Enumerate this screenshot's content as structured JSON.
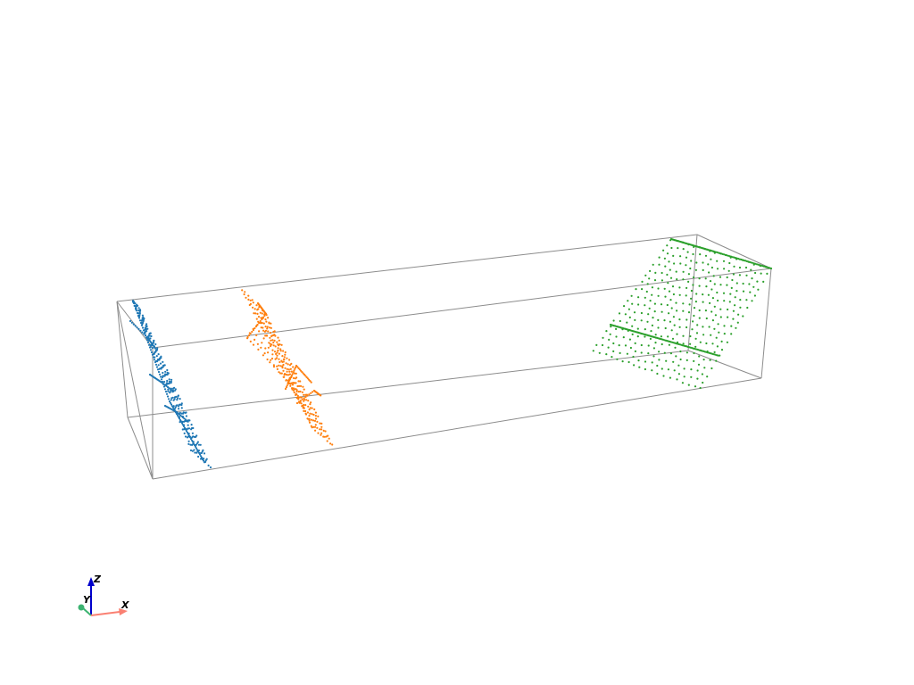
{
  "scene": {
    "background": "#ffffff",
    "bounding_box_color": "#8c8c8c",
    "clouds": [
      {
        "id": "blue",
        "color": "#1f77b4"
      },
      {
        "id": "orange",
        "color": "#ff7f0e"
      },
      {
        "id": "green",
        "color": "#2ca02c"
      }
    ]
  },
  "orientation_widget": {
    "z": {
      "label": "Z",
      "color": "#0000cc"
    },
    "y": {
      "label": "Y",
      "color": "#3cb371"
    },
    "x": {
      "label": "X",
      "color": "#fa8072"
    }
  }
}
